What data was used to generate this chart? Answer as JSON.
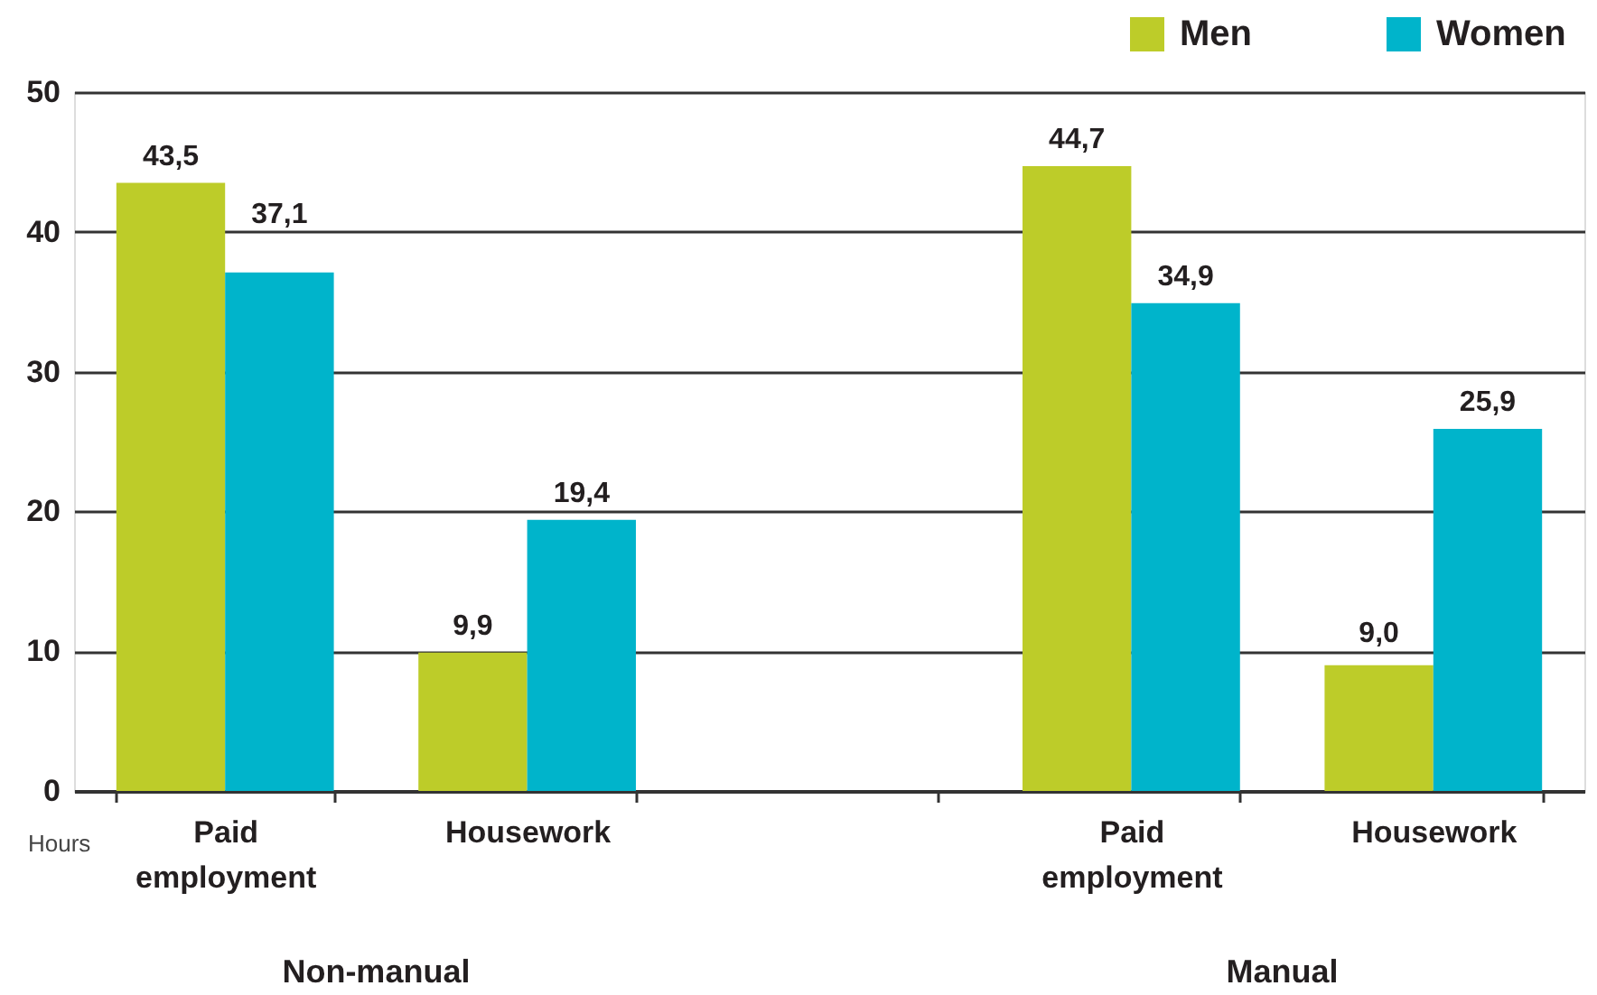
{
  "chart_data": {
    "type": "bar",
    "ylabel": "Hours",
    "categories": [
      "Paid employment",
      "Housework",
      null,
      "Paid employment",
      "Housework"
    ],
    "series": [
      {
        "name": "Men",
        "color": "#bdcc29",
        "values": [
          43.5,
          9.9,
          null,
          44.7,
          9.0
        ],
        "value_labels": [
          "43,5",
          "9,9",
          null,
          "44,7",
          "9,0"
        ]
      },
      {
        "name": "Women",
        "color": "#00b4cb",
        "values": [
          37.1,
          19.4,
          null,
          34.9,
          25.9
        ],
        "value_labels": [
          "37,1",
          "19,4",
          null,
          "34,9",
          "25,9"
        ]
      }
    ],
    "ylim": [
      0,
      50
    ],
    "yticks": [
      0,
      10,
      20,
      30,
      40,
      50
    ],
    "grid": "y",
    "legend": "top right",
    "annotations": [
      "Non-manual",
      "Manual"
    ]
  }
}
